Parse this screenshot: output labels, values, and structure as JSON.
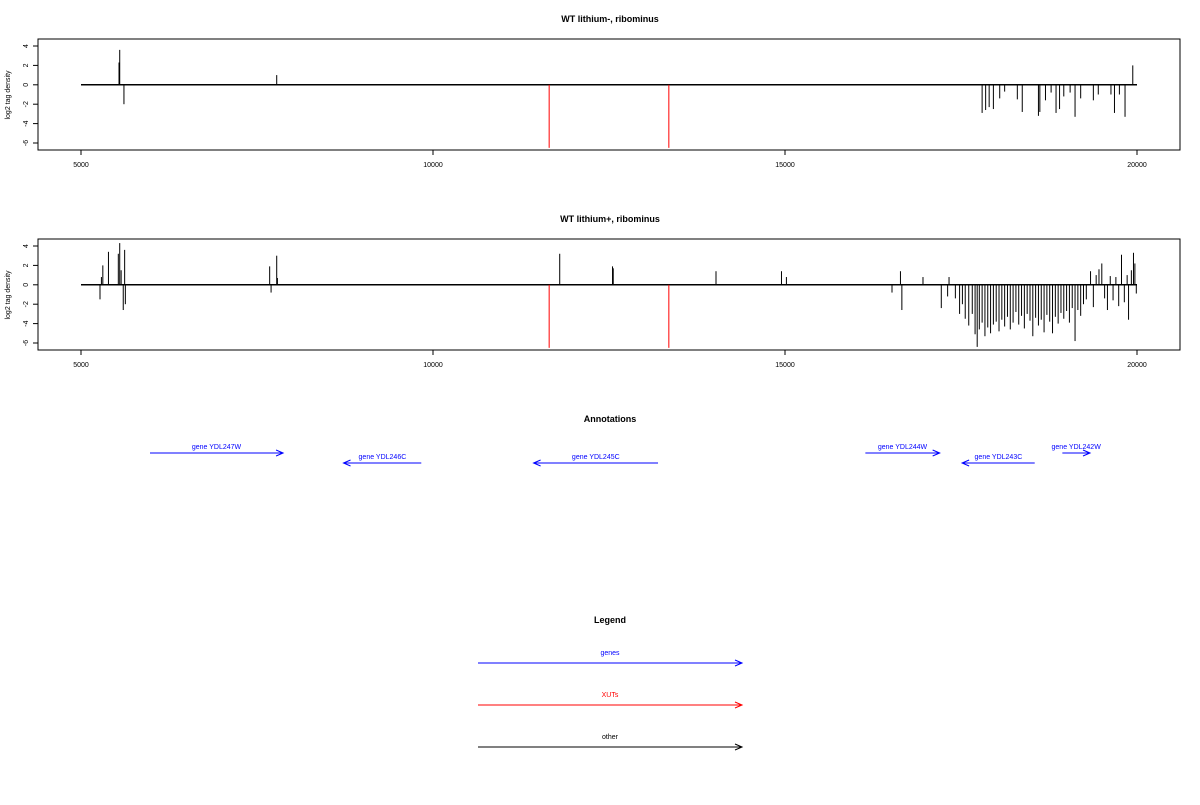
{
  "chart_data": [
    {
      "type": "bar",
      "title": "WT lithium-, ribominus",
      "ylabel": "log2 tag density",
      "xlim": [
        5000,
        20000
      ],
      "ylim": [
        -6.5,
        4.5
      ],
      "xticks": [
        5000,
        10000,
        15000,
        20000
      ],
      "yticks": [
        4,
        2,
        0,
        -2,
        -4,
        -6
      ],
      "grid": false,
      "markers": [
        {
          "x": 11650,
          "y": -6.5,
          "color": "#ff0000"
        },
        {
          "x": 13350,
          "y": -6.5,
          "color": "#ff0000"
        }
      ],
      "bars": [
        {
          "x": 5540,
          "y": 2.3
        },
        {
          "x": 5550,
          "y": 3.6
        },
        {
          "x": 5610,
          "y": -2.0
        },
        {
          "x": 7780,
          "y": 1.0
        },
        {
          "x": 17800,
          "y": -2.9
        },
        {
          "x": 17850,
          "y": -2.6
        },
        {
          "x": 17900,
          "y": -2.3
        },
        {
          "x": 17960,
          "y": -2.5
        },
        {
          "x": 18050,
          "y": -1.4
        },
        {
          "x": 18120,
          "y": -0.7
        },
        {
          "x": 18300,
          "y": -1.5
        },
        {
          "x": 18370,
          "y": -2.8
        },
        {
          "x": 18600,
          "y": -3.2
        },
        {
          "x": 18620,
          "y": -2.8
        },
        {
          "x": 18700,
          "y": -1.6
        },
        {
          "x": 18780,
          "y": -0.8
        },
        {
          "x": 18850,
          "y": -2.9
        },
        {
          "x": 18900,
          "y": -2.5
        },
        {
          "x": 18960,
          "y": -1.2
        },
        {
          "x": 19050,
          "y": -0.8
        },
        {
          "x": 19120,
          "y": -3.3
        },
        {
          "x": 19200,
          "y": -1.4
        },
        {
          "x": 19380,
          "y": -1.6
        },
        {
          "x": 19450,
          "y": -1.0
        },
        {
          "x": 19630,
          "y": -1.0
        },
        {
          "x": 19680,
          "y": -2.9
        },
        {
          "x": 19750,
          "y": -1.0
        },
        {
          "x": 19830,
          "y": -3.3
        },
        {
          "x": 19940,
          "y": 2.0
        }
      ]
    },
    {
      "type": "bar",
      "title": "WT lithium+, ribominus",
      "ylabel": "log2 tag density",
      "xlim": [
        5000,
        20000
      ],
      "ylim": [
        -6.5,
        4.5
      ],
      "xticks": [
        5000,
        10000,
        15000,
        20000
      ],
      "yticks": [
        4,
        2,
        0,
        -2,
        -4,
        -6
      ],
      "grid": false,
      "markers": [
        {
          "x": 11650,
          "y": -6.5,
          "color": "#ff0000"
        },
        {
          "x": 13350,
          "y": -6.5,
          "color": "#ff0000"
        }
      ],
      "bars": [
        {
          "x": 5270,
          "y": -1.5
        },
        {
          "x": 5290,
          "y": 0.8
        },
        {
          "x": 5310,
          "y": 2.0
        },
        {
          "x": 5390,
          "y": 3.4
        },
        {
          "x": 5530,
          "y": 3.2
        },
        {
          "x": 5550,
          "y": 4.3
        },
        {
          "x": 5570,
          "y": 1.5
        },
        {
          "x": 5600,
          "y": -2.6
        },
        {
          "x": 5620,
          "y": 3.6
        },
        {
          "x": 5630,
          "y": -2.0
        },
        {
          "x": 7680,
          "y": 1.9
        },
        {
          "x": 7700,
          "y": -0.8
        },
        {
          "x": 7780,
          "y": 3.0
        },
        {
          "x": 7790,
          "y": 0.7
        },
        {
          "x": 11800,
          "y": 3.2
        },
        {
          "x": 12550,
          "y": 1.9
        },
        {
          "x": 12560,
          "y": 1.7
        },
        {
          "x": 14020,
          "y": 1.4
        },
        {
          "x": 14950,
          "y": 1.4
        },
        {
          "x": 15020,
          "y": 0.8
        },
        {
          "x": 16520,
          "y": -0.8
        },
        {
          "x": 16640,
          "y": 1.4
        },
        {
          "x": 16660,
          "y": -2.6
        },
        {
          "x": 16960,
          "y": 0.8
        },
        {
          "x": 17220,
          "y": -2.4
        },
        {
          "x": 17310,
          "y": -1.2
        },
        {
          "x": 17330,
          "y": 0.8
        },
        {
          "x": 17420,
          "y": -1.4
        },
        {
          "x": 17480,
          "y": -3.0
        },
        {
          "x": 17520,
          "y": -2.0
        },
        {
          "x": 17560,
          "y": -3.5
        },
        {
          "x": 17610,
          "y": -4.2
        },
        {
          "x": 17660,
          "y": -3.0
        },
        {
          "x": 17700,
          "y": -5.1
        },
        {
          "x": 17730,
          "y": -6.4
        },
        {
          "x": 17760,
          "y": -4.6
        },
        {
          "x": 17800,
          "y": -3.9
        },
        {
          "x": 17840,
          "y": -5.3
        },
        {
          "x": 17880,
          "y": -4.4
        },
        {
          "x": 17920,
          "y": -5.0
        },
        {
          "x": 17960,
          "y": -4.1
        },
        {
          "x": 18000,
          "y": -3.8
        },
        {
          "x": 18040,
          "y": -4.8
        },
        {
          "x": 18080,
          "y": -3.6
        },
        {
          "x": 18120,
          "y": -4.3
        },
        {
          "x": 18160,
          "y": -3.3
        },
        {
          "x": 18200,
          "y": -4.6
        },
        {
          "x": 18240,
          "y": -3.9
        },
        {
          "x": 18280,
          "y": -2.8
        },
        {
          "x": 18320,
          "y": -4.1
        },
        {
          "x": 18360,
          "y": -3.2
        },
        {
          "x": 18400,
          "y": -4.5
        },
        {
          "x": 18440,
          "y": -3.0
        },
        {
          "x": 18480,
          "y": -3.7
        },
        {
          "x": 18520,
          "y": -5.3
        },
        {
          "x": 18560,
          "y": -3.4
        },
        {
          "x": 18600,
          "y": -4.2
        },
        {
          "x": 18640,
          "y": -3.6
        },
        {
          "x": 18680,
          "y": -4.9
        },
        {
          "x": 18720,
          "y": -3.1
        },
        {
          "x": 18760,
          "y": -3.8
        },
        {
          "x": 18800,
          "y": -5.0
        },
        {
          "x": 18840,
          "y": -3.3
        },
        {
          "x": 18880,
          "y": -4.0
        },
        {
          "x": 18920,
          "y": -2.9
        },
        {
          "x": 18960,
          "y": -3.5
        },
        {
          "x": 19000,
          "y": -2.7
        },
        {
          "x": 19040,
          "y": -3.9
        },
        {
          "x": 19080,
          "y": -2.4
        },
        {
          "x": 19120,
          "y": -5.8
        },
        {
          "x": 19160,
          "y": -2.6
        },
        {
          "x": 19200,
          "y": -3.2
        },
        {
          "x": 19240,
          "y": -2.0
        },
        {
          "x": 19280,
          "y": -1.5
        },
        {
          "x": 19340,
          "y": 1.4
        },
        {
          "x": 19380,
          "y": -2.3
        },
        {
          "x": 19420,
          "y": 1.0
        },
        {
          "x": 19460,
          "y": 1.6
        },
        {
          "x": 19500,
          "y": 2.2
        },
        {
          "x": 19540,
          "y": -1.4
        },
        {
          "x": 19580,
          "y": -2.6
        },
        {
          "x": 19620,
          "y": 0.9
        },
        {
          "x": 19660,
          "y": -1.6
        },
        {
          "x": 19700,
          "y": 0.8
        },
        {
          "x": 19740,
          "y": -2.2
        },
        {
          "x": 19780,
          "y": 3.1
        },
        {
          "x": 19820,
          "y": -1.8
        },
        {
          "x": 19860,
          "y": 1.0
        },
        {
          "x": 19880,
          "y": -3.6
        },
        {
          "x": 19920,
          "y": 1.5
        },
        {
          "x": 19950,
          "y": 3.3
        },
        {
          "x": 19970,
          "y": 2.2
        },
        {
          "x": 19990,
          "y": -0.9
        }
      ]
    }
  ],
  "annotations": {
    "title": "Annotations",
    "items": [
      {
        "label": "gene YDL247W",
        "start": 5200,
        "end": 9050,
        "direction": "right",
        "row": 0,
        "color": "#0000ff"
      },
      {
        "label": "gene YDL246C",
        "start": 10800,
        "end": 13050,
        "direction": "left",
        "row": 1,
        "color": "#0000ff"
      },
      {
        "label": "gene YDL245C",
        "start": 16300,
        "end": 19900,
        "direction": "left",
        "row": 1,
        "color": "#0000ff"
      },
      {
        "label": "gene YDL244W",
        "start": 25900,
        "end": 28050,
        "direction": "right",
        "row": 0,
        "color": "#0000ff"
      },
      {
        "label": "gene YDL243C",
        "start": 28700,
        "end": 30800,
        "direction": "left",
        "row": 1,
        "color": "#0000ff"
      },
      {
        "label": "gene YDL242W",
        "start": 31600,
        "end": 32400,
        "direction": "right",
        "row": 0,
        "color": "#0000ff"
      }
    ]
  },
  "legend": {
    "title": "Legend",
    "items": [
      {
        "label": "genes",
        "color": "#0000ff"
      },
      {
        "label": "XUTs",
        "color": "#ff0000"
      },
      {
        "label": "other",
        "color": "#000000"
      }
    ]
  }
}
